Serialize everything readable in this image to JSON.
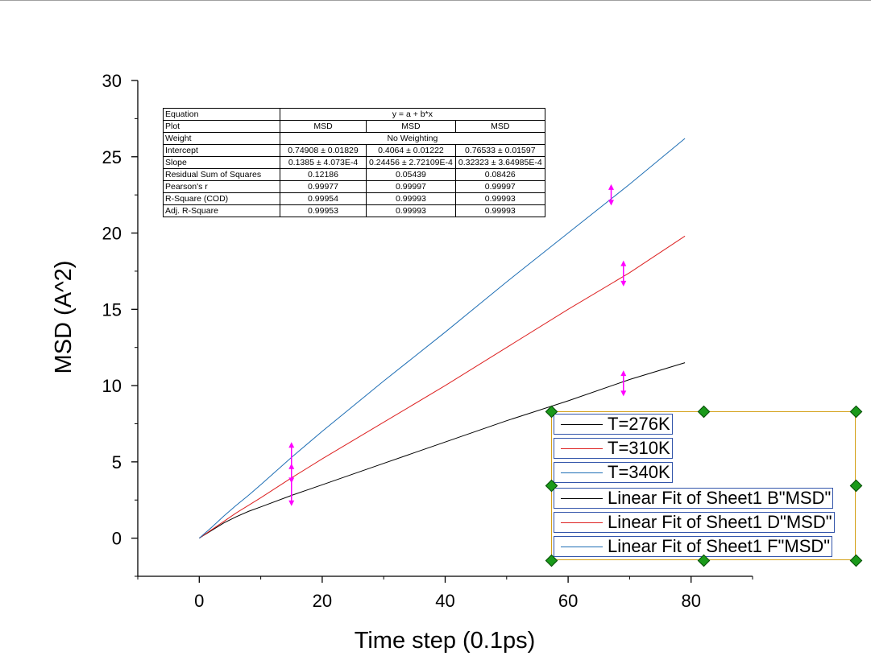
{
  "chart_data": {
    "type": "line",
    "title": "",
    "xlabel": "Time step (0.1ps)",
    "ylabel": "MSD (A^2)",
    "xlim": [
      -10,
      90
    ],
    "ylim": [
      -2.5,
      30
    ],
    "xticks": [
      0,
      20,
      40,
      60,
      80
    ],
    "yticks": [
      0,
      5,
      10,
      15,
      20,
      25,
      30
    ],
    "grid": false,
    "legend_position": "bottom-right",
    "series": [
      {
        "name": "T=276K",
        "color": "#000000",
        "x": [
          0,
          2,
          4,
          6,
          8,
          10,
          15,
          20,
          30,
          40,
          50,
          60,
          70,
          79
        ],
        "y": [
          0,
          0.5,
          1.0,
          1.4,
          1.75,
          2.05,
          2.8,
          3.5,
          4.9,
          6.3,
          7.7,
          9.0,
          10.4,
          11.5
        ]
      },
      {
        "name": "T=310K",
        "color": "#dd2222",
        "x": [
          0,
          2,
          4,
          6,
          8,
          10,
          15,
          20,
          30,
          40,
          50,
          60,
          70,
          79
        ],
        "y": [
          0,
          0.55,
          1.1,
          1.65,
          2.15,
          2.65,
          3.95,
          5.2,
          7.6,
          10.0,
          12.5,
          15.0,
          17.4,
          19.8
        ]
      },
      {
        "name": "T=340K",
        "color": "#1f6fb5",
        "x": [
          0,
          2,
          4,
          6,
          8,
          10,
          15,
          20,
          30,
          40,
          50,
          60,
          70,
          79
        ],
        "y": [
          0,
          0.7,
          1.45,
          2.15,
          2.8,
          3.5,
          5.3,
          7.0,
          10.3,
          13.5,
          16.8,
          20.0,
          23.2,
          26.2
        ]
      }
    ],
    "annotations": [
      {
        "x": 15,
        "y_low": 2.1,
        "y_high": 4.9
      },
      {
        "x": 15,
        "y_low": 3.6,
        "y_high": 6.3
      },
      {
        "x": 67,
        "y_low": 21.8,
        "y_high": 23.2
      },
      {
        "x": 69,
        "y_low": 16.5,
        "y_high": 18.2
      },
      {
        "x": 69,
        "y_low": 9.3,
        "y_high": 11.0
      }
    ]
  },
  "fit_table": {
    "rows": [
      {
        "label": "Equation",
        "span": "y = a + b*x"
      },
      {
        "label": "Plot",
        "cells": [
          "MSD",
          "MSD",
          "MSD"
        ]
      },
      {
        "label": "Weight",
        "span": "No Weighting"
      },
      {
        "label": "Intercept",
        "cells": [
          "0.74908 ± 0.01829",
          "0.4064 ± 0.01222",
          "0.76533 ± 0.01597"
        ]
      },
      {
        "label": "Slope",
        "cells": [
          "0.1385 ± 4.073E-4",
          "0.24456 ± 2.72109E-4",
          "0.32323 ± 3.64985E-4"
        ]
      },
      {
        "label": "Residual Sum of Squares",
        "cells": [
          "0.12186",
          "0.05439",
          "0.08426"
        ]
      },
      {
        "label": "Pearson's r",
        "cells": [
          "0.99977",
          "0.99997",
          "0.99997"
        ]
      },
      {
        "label": "R-Square (COD)",
        "cells": [
          "0.99954",
          "0.99993",
          "0.99993"
        ]
      },
      {
        "label": "Adj. R-Square",
        "cells": [
          "0.99953",
          "0.99993",
          "0.99993"
        ]
      }
    ]
  },
  "legend": {
    "items": [
      {
        "label": "T=276K",
        "color": "#000000"
      },
      {
        "label": "T=310K",
        "color": "#dd2222"
      },
      {
        "label": "T=340K",
        "color": "#1f6fb5"
      },
      {
        "label": "Linear Fit of Sheet1 B\"MSD\"",
        "color": "#000000"
      },
      {
        "label": "Linear Fit of Sheet1 D\"MSD\"",
        "color": "#dd2222"
      },
      {
        "label": "Linear Fit of Sheet1 F\"MSD\"",
        "color": "#1f6fb5"
      }
    ]
  }
}
